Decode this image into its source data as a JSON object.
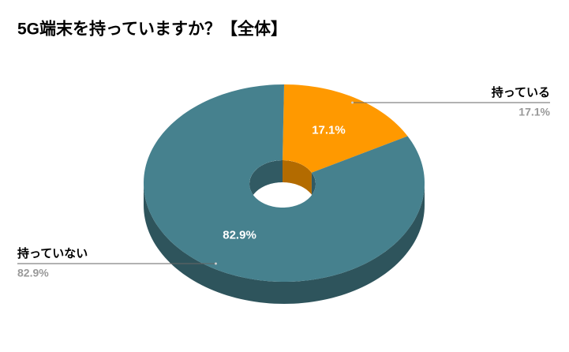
{
  "chart_data": {
    "type": "pie",
    "title": "5G端末を持っていますか？【全体】",
    "categories": [
      "持っている",
      "持っていない"
    ],
    "values": [
      17.1,
      82.9
    ],
    "value_labels": [
      "17.1%",
      "82.9%"
    ],
    "colors": [
      "#ff9900",
      "#46818e"
    ],
    "donut": true,
    "three_d": true
  }
}
